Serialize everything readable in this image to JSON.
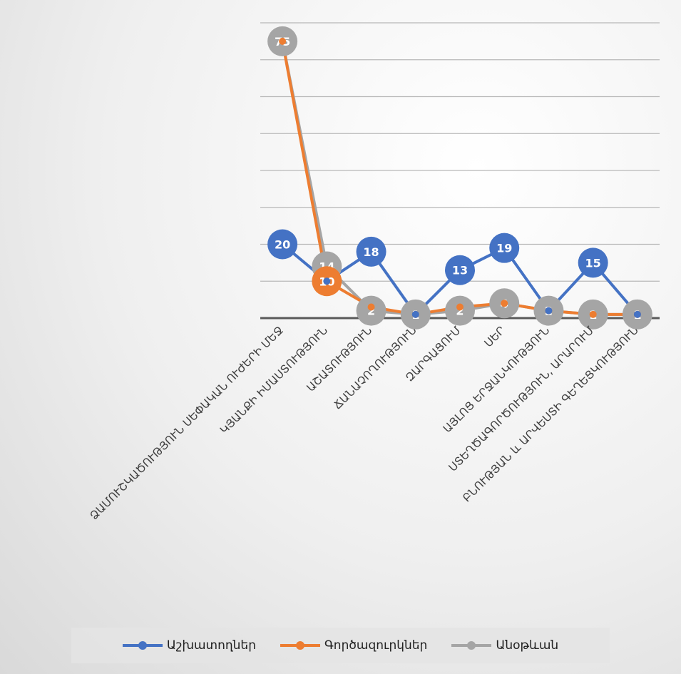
{
  "chart_data": {
    "type": "line",
    "categories": [
      "ՁԱՄՈՒՇԿԱԾՈՒԹՅՈՒՆ ՍԵՓԱԿԱՆ ՈՒԺԵՐԻ ՄԵՋ",
      "ԿՅԱՆՔԻ ԻՄԱՍՏՈՒԹՅՈՒՆ",
      "ԱՇԱՏՈՒԹՅՈՒՆ",
      "ՃԱՆԱՉՈՂՈՒԹՅՈՒՆ",
      "ԶԱՐԳԱՑՈՒՄ",
      "ՍԵՐ",
      "ԱՅԼՈՑ ԵՐՋԱՆԿՈՒԹՅՈՒՆ",
      "ՍՏԵՂԾԱԳՈՐԾՈՒԹՅՈՒՆ, ԱՐԱՐՈՒՄ",
      "ԲՆՈՒԹՅԱՆ և ԱՐՎԵՍՏԻ ԳԵՂԵՑԿՈՒԹՅՈՒՆ"
    ],
    "series": [
      {
        "name": "Աշխատողներ",
        "color": "#4472C4",
        "values": [
          20,
          10,
          18,
          1,
          13,
          19,
          2,
          15,
          1
        ]
      },
      {
        "name": "Գործազուրկներ",
        "color": "#ED7D31",
        "values": [
          75,
          10,
          3,
          1,
          3,
          4,
          2,
          1,
          1
        ]
      },
      {
        "name": "Անօթևան",
        "color": "#A5A5A5",
        "values": [
          75,
          14,
          2,
          1,
          2,
          4,
          2,
          1,
          1
        ]
      }
    ],
    "data_labels": [
      {
        "series": 0,
        "index": 0,
        "text": "20"
      },
      {
        "series": 0,
        "index": 2,
        "text": "18"
      },
      {
        "series": 0,
        "index": 4,
        "text": "13"
      },
      {
        "series": 0,
        "index": 5,
        "text": "19"
      },
      {
        "series": 0,
        "index": 7,
        "text": "15"
      },
      {
        "series": 1,
        "index": 1,
        "text": "10"
      },
      {
        "series": 2,
        "index": 0,
        "text": "75"
      },
      {
        "series": 2,
        "index": 1,
        "text": "14"
      },
      {
        "series": 2,
        "index": 2,
        "text": "2"
      },
      {
        "series": 2,
        "index": 3,
        "text": "1"
      },
      {
        "series": 2,
        "index": 4,
        "text": "2"
      },
      {
        "series": 2,
        "index": 5,
        "text": "4"
      },
      {
        "series": 2,
        "index": 6,
        "text": "2"
      },
      {
        "series": 2,
        "index": 7,
        "text": "1"
      },
      {
        "series": 2,
        "index": 8,
        "text": "1"
      }
    ],
    "ylim": [
      0,
      80
    ],
    "grid": true,
    "legend_position": "bottom"
  }
}
